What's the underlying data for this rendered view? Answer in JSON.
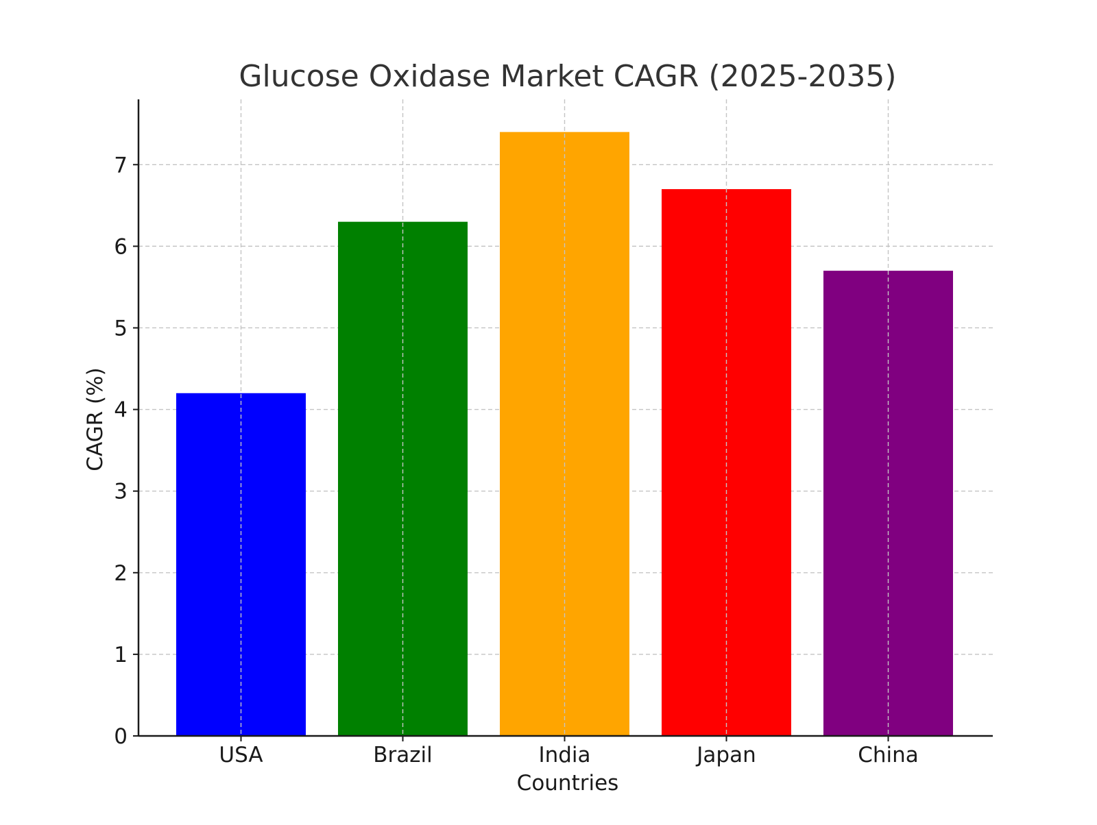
{
  "chart_data": {
    "type": "bar",
    "title": "Glucose Oxidase Market CAGR (2025-2035)",
    "xlabel": "Countries",
    "ylabel": "CAGR (%)",
    "categories": [
      "USA",
      "Brazil",
      "India",
      "Japan",
      "China"
    ],
    "values": [
      4.2,
      6.3,
      7.4,
      6.7,
      5.7
    ],
    "colors": [
      "#0000ff",
      "#008000",
      "#ffa500",
      "#ff0000",
      "#800080"
    ],
    "ylim": [
      0,
      7.8
    ],
    "yticks": [
      0,
      1,
      2,
      3,
      4,
      5,
      6,
      7
    ],
    "grid": true,
    "legend": "none"
  }
}
